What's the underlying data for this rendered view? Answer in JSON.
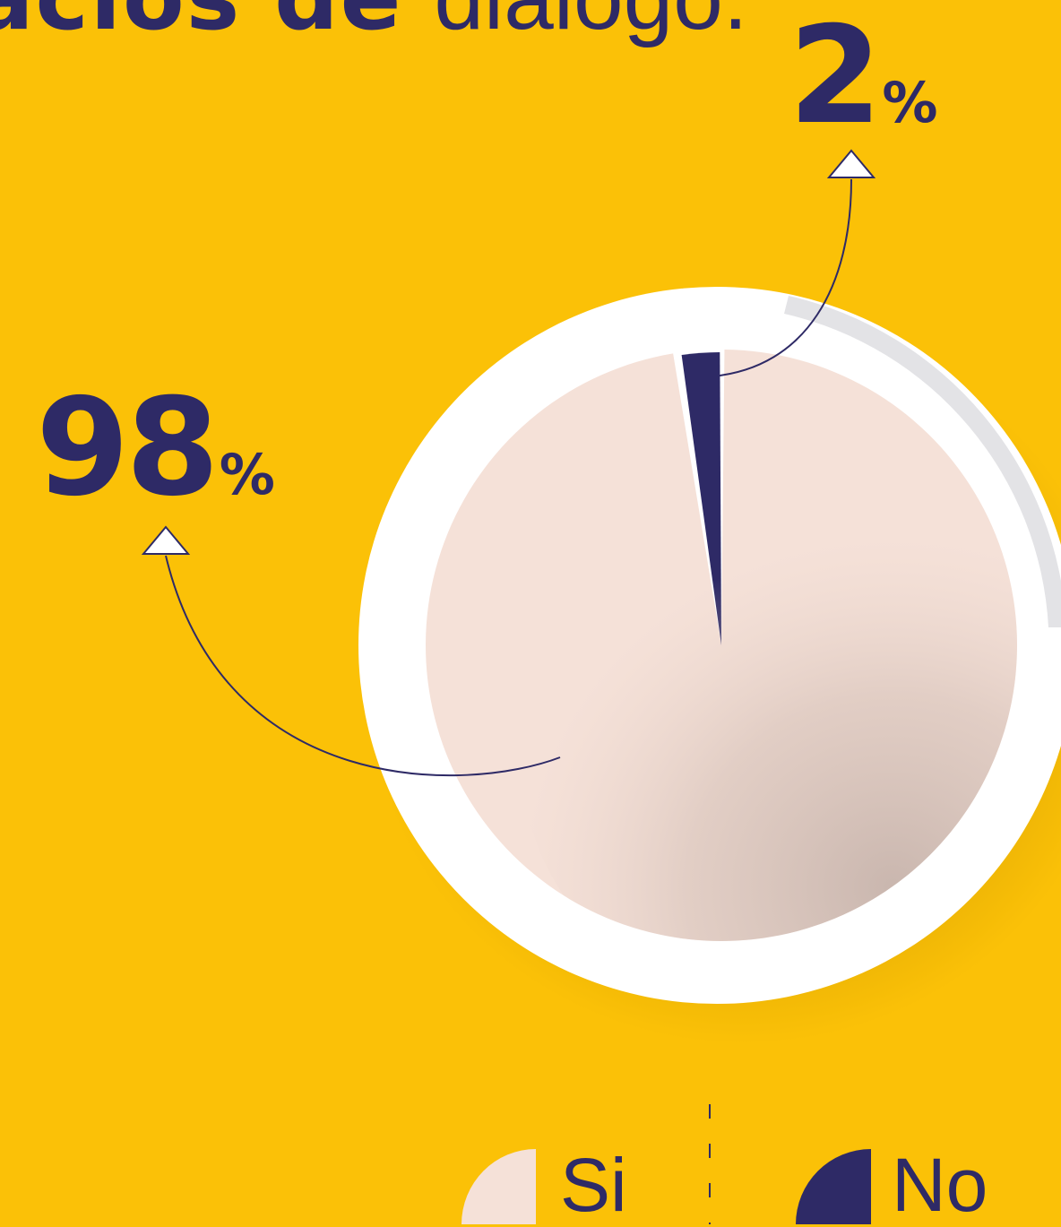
{
  "headline": {
    "bold_part": "acios de",
    "light_part": "diálogo."
  },
  "chart_data": {
    "type": "pie",
    "categories": [
      "Si",
      "No"
    ],
    "values": [
      98,
      2
    ],
    "value_labels": [
      {
        "number": "98",
        "symbol": "%"
      },
      {
        "number": "2",
        "symbol": "%"
      }
    ],
    "colors": [
      "#F5E1D8",
      "#2E2A66"
    ]
  },
  "legend": {
    "items": [
      {
        "label": "Si",
        "color": "#F5E1D8"
      },
      {
        "label": "No",
        "color": "#2E2A66"
      }
    ]
  },
  "colors": {
    "background": "#FBC107",
    "accent": "#2E2A66"
  }
}
